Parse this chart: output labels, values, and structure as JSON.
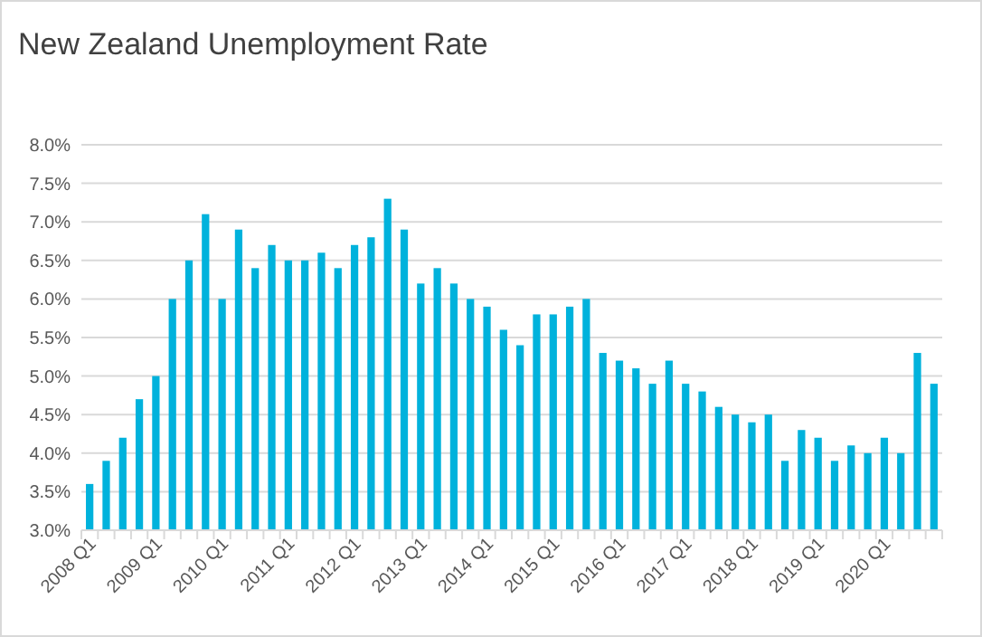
{
  "chart_data": {
    "type": "bar",
    "title": "New Zealand Unemployment Rate",
    "categories": [
      "2008 Q1",
      null,
      null,
      null,
      "2009 Q1",
      null,
      null,
      null,
      "2010 Q1",
      null,
      null,
      null,
      "2011 Q1",
      null,
      null,
      null,
      "2012 Q1",
      null,
      null,
      null,
      "2013 Q1",
      null,
      null,
      null,
      "2014 Q1",
      null,
      null,
      null,
      "2015 Q1",
      null,
      null,
      null,
      "2016 Q1",
      null,
      null,
      null,
      "2017 Q1",
      null,
      null,
      null,
      "2018 Q1",
      null,
      null,
      null,
      "2019 Q1",
      null,
      null,
      null,
      "2020 Q1",
      null,
      null,
      null
    ],
    "values": [
      3.6,
      3.9,
      4.2,
      4.7,
      5.0,
      6.0,
      6.5,
      7.1,
      6.0,
      6.9,
      6.4,
      6.7,
      6.5,
      6.5,
      6.6,
      6.4,
      6.7,
      6.8,
      7.3,
      6.9,
      6.2,
      6.4,
      6.2,
      6.0,
      5.9,
      5.6,
      5.4,
      5.8,
      5.8,
      5.9,
      6.0,
      5.3,
      5.2,
      5.1,
      4.9,
      5.2,
      4.9,
      4.8,
      4.6,
      4.5,
      4.4,
      4.5,
      3.9,
      4.3,
      4.2,
      3.9,
      4.1,
      4.0,
      4.2,
      4.0,
      5.3,
      4.9
    ],
    "color": "#00b2dc",
    "ylim": [
      3,
      8
    ],
    "yticks": [
      {
        "value": 3,
        "label": "3.0%"
      },
      {
        "value": 3.5,
        "label": "3.5%"
      },
      {
        "value": 4,
        "label": "4.0%"
      },
      {
        "value": 4.5,
        "label": "4.5%"
      },
      {
        "value": 5,
        "label": "5.0%"
      },
      {
        "value": 5.5,
        "label": "5.5%"
      },
      {
        "value": 6,
        "label": "6.0%"
      },
      {
        "value": 6.5,
        "label": "6.5%"
      },
      {
        "value": 7,
        "label": "7.0%"
      },
      {
        "value": 7.5,
        "label": "7.5%"
      },
      {
        "value": 8,
        "label": "8.0%"
      }
    ],
    "grid": "y"
  }
}
